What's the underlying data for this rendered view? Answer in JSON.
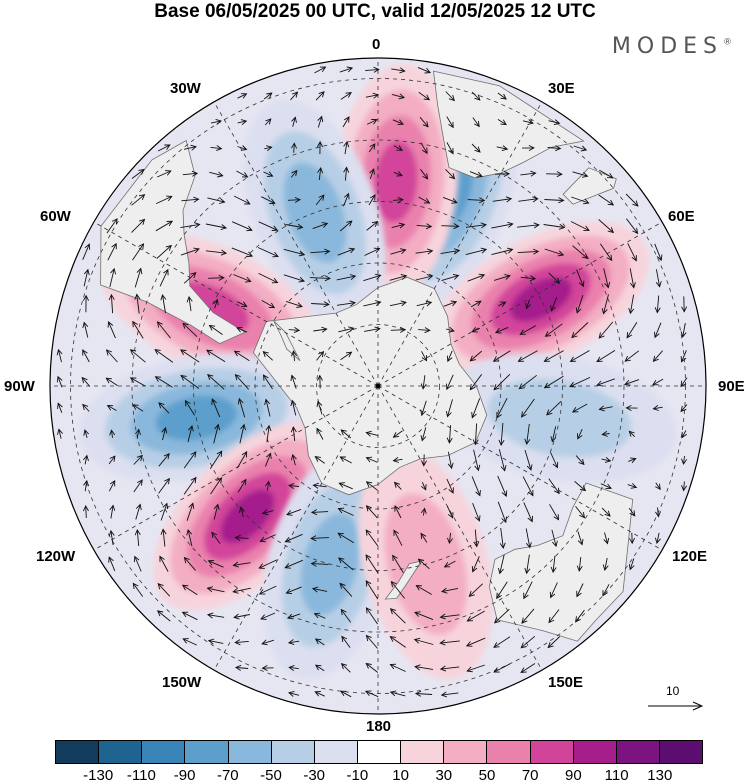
{
  "header": {
    "title": "Base 06/05/2025 00 UTC, valid 12/05/2025 12 UTC",
    "brand": "MODES",
    "brand_mark": "®"
  },
  "longitude_labels": {
    "lon_0": "0",
    "lon_30e": "30E",
    "lon_60e": "60E",
    "lon_90e": "90E",
    "lon_120e": "120E",
    "lon_150e": "150E",
    "lon_180": "180",
    "lon_150w": "150W",
    "lon_120w": "120W",
    "lon_90w": "90W",
    "lon_60w": "60W",
    "lon_30w": "30W"
  },
  "vector_reference": {
    "label": "10"
  },
  "colorbar": {
    "tick_labels": [
      "-130",
      "-110",
      "-90",
      "-70",
      "-50",
      "-30",
      "-10",
      "10",
      "30",
      "50",
      "70",
      "90",
      "110",
      "130"
    ],
    "colors": [
      "#133c5c",
      "#1f6391",
      "#3a85b8",
      "#5d9fcc",
      "#8ab8dc",
      "#b7cfe6",
      "#dcdff0",
      "#ffffff",
      "#f7d4dc",
      "#f3aec3",
      "#ea81ad",
      "#d2449a",
      "#a51e8c",
      "#7b1480",
      "#5b0e6f"
    ]
  },
  "map_style": {
    "land_color": "#eeeeee",
    "coast_color": "#6f6f6f",
    "grid_color": "#333333"
  },
  "anomaly_centers": [
    {
      "sign": "negative",
      "level": 80,
      "lon_deg": 20,
      "lat_deg": -40
    },
    {
      "sign": "positive",
      "level": 90,
      "lon_deg": 62,
      "lat_deg": -45
    },
    {
      "sign": "positive",
      "level": 70,
      "lon_deg": 5,
      "lat_deg": -40
    },
    {
      "sign": "negative",
      "level": 50,
      "lon_deg": -20,
      "lat_deg": -45
    },
    {
      "sign": "positive",
      "level": 80,
      "lon_deg": -65,
      "lat_deg": -45
    },
    {
      "sign": "negative",
      "level": 85,
      "lon_deg": -100,
      "lat_deg": -45
    },
    {
      "sign": "positive",
      "level": 100,
      "lon_deg": -135,
      "lat_deg": -45
    },
    {
      "sign": "negative",
      "level": 60,
      "lon_deg": -165,
      "lat_deg": -45
    },
    {
      "sign": "positive",
      "level": 40,
      "lon_deg": 165,
      "lat_deg": -45
    },
    {
      "sign": "negative",
      "level": 40,
      "lon_deg": 100,
      "lat_deg": -45
    }
  ]
}
